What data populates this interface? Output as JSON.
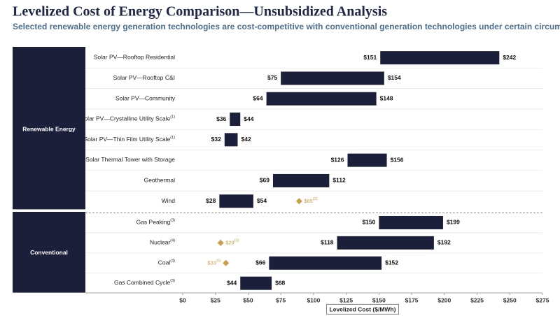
{
  "chart_data": {
    "type": "bar",
    "title": "Levelized Cost of Energy Comparison—Unsubsidized Analysis",
    "subtitle": "Selected renewable energy generation technologies are cost-competitive with conventional generation technologies under certain circumstances",
    "x_label": "Levelized Cost ($/MWh)",
    "bar_color": "#1c1f3a",
    "marker_color": "#c9a04a",
    "xlim": [
      0,
      275
    ],
    "xticks": [
      {
        "value": 0,
        "label": "$0"
      },
      {
        "value": 25,
        "label": "$25"
      },
      {
        "value": 50,
        "label": "$50"
      },
      {
        "value": 75,
        "label": "$75"
      },
      {
        "value": 100,
        "label": "$100"
      },
      {
        "value": 125,
        "label": "$125"
      },
      {
        "value": 150,
        "label": "$150"
      },
      {
        "value": 175,
        "label": "$175"
      },
      {
        "value": 200,
        "label": "$200"
      },
      {
        "value": 225,
        "label": "$225"
      },
      {
        "value": 250,
        "label": "$250"
      },
      {
        "value": 275,
        "label": "$275"
      }
    ],
    "groups": [
      {
        "name": "Renewable Energy",
        "categories": [
          "Solar PV—Rooftop Residential",
          "Solar PV—Rooftop C&I",
          "Solar PV—Community",
          "Solar PV—Crystalline Utility Scale",
          "Solar PV—Thin Film Utility Scale",
          "Solar Thermal Tower with Storage",
          "Geothermal",
          "Wind"
        ],
        "category_notes": [
          null,
          null,
          null,
          "(1)",
          "(1)",
          null,
          null,
          null
        ],
        "series": [
          {
            "values": [
              151,
              75,
              64,
              36,
              32,
              126,
              69,
              28
            ],
            "value_labels": [
              "$151",
              "$75",
              "$64",
              "$36",
              "$32",
              "$126",
              "$69",
              "$28"
            ]
          },
          {
            "values": [
              242,
              154,
              148,
              44,
              42,
              156,
              112,
              54
            ],
            "value_labels": [
              "$242",
              "$154",
              "$148",
              "$44",
              "$42",
              "$156",
              "$112",
              "$54"
            ]
          }
        ],
        "markers": [
          null,
          null,
          null,
          null,
          null,
          null,
          null,
          {
            "value": 89,
            "label": "$89",
            "note": "(2)",
            "label_side": "right"
          }
        ]
      },
      {
        "name": "Conventional",
        "categories": [
          "Gas Peaking",
          "Nuclear",
          "Coal",
          "Gas Combined Cycle"
        ],
        "category_notes": [
          "(3)",
          "(4)",
          "(4)",
          "(3)"
        ],
        "series": [
          {
            "values": [
              150,
              118,
              66,
              44
            ],
            "value_labels": [
              "$150",
              "$118",
              "$66",
              "$44"
            ]
          },
          {
            "values": [
              199,
              192,
              152,
              68
            ],
            "value_labels": [
              "$199",
              "$192",
              "$152",
              "$68"
            ]
          }
        ],
        "markers": [
          null,
          {
            "value": 29,
            "label": "$29",
            "note": "(3)",
            "label_side": "right"
          },
          {
            "value": 33,
            "label": "$33",
            "note": "(5)",
            "label_side": "left"
          },
          null
        ]
      }
    ]
  }
}
